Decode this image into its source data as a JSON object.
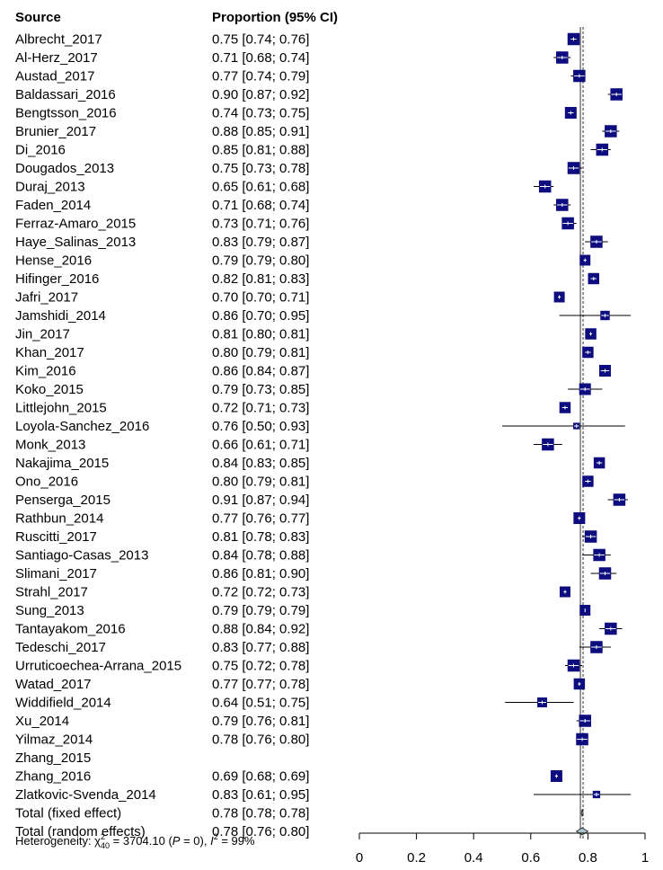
{
  "chart_data": {
    "type": "forest",
    "headers": {
      "source": "Source",
      "estimate": "Proportion (95% CI)"
    },
    "xlim": [
      0,
      1
    ],
    "x_ticks": [
      0,
      0.2,
      0.4,
      0.6,
      0.8,
      1
    ],
    "x_tick_labels": [
      "0",
      "0.2",
      "0.4",
      "0.6",
      "0.8",
      "1"
    ],
    "fixed_line": 0.78,
    "random_line": 0.78,
    "colors": {
      "box": "#0d0d80",
      "diamond": "#a9c4cc",
      "ci": "#000000"
    },
    "studies": [
      {
        "name": "Albrecht_2017",
        "text": "0.75 [0.74; 0.76]",
        "est": 0.75,
        "lo": 0.74,
        "hi": 0.76,
        "w": 2.6
      },
      {
        "name": "Al-Herz_2017",
        "text": "0.71 [0.68; 0.74]",
        "est": 0.71,
        "lo": 0.68,
        "hi": 0.74,
        "w": 2.6
      },
      {
        "name": "Austad_2017",
        "text": "0.77 [0.74; 0.79]",
        "est": 0.77,
        "lo": 0.74,
        "hi": 0.79,
        "w": 2.6
      },
      {
        "name": "Baldassari_2016",
        "text": "0.90 [0.87; 0.92]",
        "est": 0.9,
        "lo": 0.87,
        "hi": 0.92,
        "w": 2.6
      },
      {
        "name": "Bengtsson_2016",
        "text": "0.74 [0.73; 0.75]",
        "est": 0.74,
        "lo": 0.73,
        "hi": 0.75,
        "w": 2.5
      },
      {
        "name": "Brunier_2017",
        "text": "0.88 [0.85; 0.91]",
        "est": 0.88,
        "lo": 0.85,
        "hi": 0.91,
        "w": 2.6
      },
      {
        "name": "Di_2016",
        "text": "0.85 [0.81; 0.88]",
        "est": 0.85,
        "lo": 0.81,
        "hi": 0.88,
        "w": 2.6
      },
      {
        "name": "Dougados_2013",
        "text": "0.75 [0.73; 0.78]",
        "est": 0.75,
        "lo": 0.73,
        "hi": 0.78,
        "w": 2.6
      },
      {
        "name": "Duraj_2013",
        "text": "0.65 [0.61; 0.68]",
        "est": 0.65,
        "lo": 0.61,
        "hi": 0.68,
        "w": 2.6
      },
      {
        "name": "Faden_2014",
        "text": "0.71 [0.68; 0.74]",
        "est": 0.71,
        "lo": 0.68,
        "hi": 0.74,
        "w": 2.6
      },
      {
        "name": "Ferraz-Amaro_2015",
        "text": "0.73 [0.71; 0.76]",
        "est": 0.73,
        "lo": 0.71,
        "hi": 0.76,
        "w": 2.6
      },
      {
        "name": "Haye_Salinas_2013",
        "text": "0.83 [0.79; 0.87]",
        "est": 0.83,
        "lo": 0.79,
        "hi": 0.87,
        "w": 2.6
      },
      {
        "name": "Hense_2016",
        "text": "0.79 [0.79; 0.80]",
        "est": 0.79,
        "lo": 0.79,
        "hi": 0.8,
        "w": 2.3
      },
      {
        "name": "Hifinger_2016",
        "text": "0.82 [0.81; 0.83]",
        "est": 0.82,
        "lo": 0.81,
        "hi": 0.83,
        "w": 2.4
      },
      {
        "name": "Jafri_2017",
        "text": "0.70 [0.70; 0.71]",
        "est": 0.7,
        "lo": 0.7,
        "hi": 0.71,
        "w": 2.3
      },
      {
        "name": "Jamshidi_2014",
        "text": "0.86 [0.70; 0.95]",
        "est": 0.86,
        "lo": 0.7,
        "hi": 0.95,
        "w": 2.0
      },
      {
        "name": "Jin_2017",
        "text": "0.81 [0.80; 0.81]",
        "est": 0.81,
        "lo": 0.8,
        "hi": 0.81,
        "w": 2.4
      },
      {
        "name": "Khan_2017",
        "text": "0.80 [0.79; 0.81]",
        "est": 0.8,
        "lo": 0.79,
        "hi": 0.81,
        "w": 2.4
      },
      {
        "name": "Kim_2016",
        "text": "0.86 [0.84; 0.87]",
        "est": 0.86,
        "lo": 0.84,
        "hi": 0.87,
        "w": 2.5
      },
      {
        "name": "Koko_2015",
        "text": "0.79 [0.73; 0.85]",
        "est": 0.79,
        "lo": 0.73,
        "hi": 0.85,
        "w": 2.5
      },
      {
        "name": "Littlejohn_2015",
        "text": "0.72 [0.71; 0.73]",
        "est": 0.72,
        "lo": 0.71,
        "hi": 0.73,
        "w": 2.4
      },
      {
        "name": "Loyola-Sanchez_2016",
        "text": "0.76 [0.50; 0.93]",
        "est": 0.76,
        "lo": 0.5,
        "hi": 0.93,
        "w": 1.4
      },
      {
        "name": "Monk_2013",
        "text": "0.66 [0.61; 0.71]",
        "est": 0.66,
        "lo": 0.61,
        "hi": 0.71,
        "w": 2.6
      },
      {
        "name": "Nakajima_2015",
        "text": "0.84 [0.83; 0.85]",
        "est": 0.84,
        "lo": 0.83,
        "hi": 0.85,
        "w": 2.4
      },
      {
        "name": "Ono_2016",
        "text": "0.80 [0.79; 0.81]",
        "est": 0.8,
        "lo": 0.79,
        "hi": 0.81,
        "w": 2.4
      },
      {
        "name": "Penserga_2015",
        "text": "0.91 [0.87; 0.94]",
        "est": 0.91,
        "lo": 0.87,
        "hi": 0.94,
        "w": 2.6
      },
      {
        "name": "Rathbun_2014",
        "text": "0.77 [0.76; 0.77]",
        "est": 0.77,
        "lo": 0.76,
        "hi": 0.77,
        "w": 2.5
      },
      {
        "name": "Ruscitti_2017",
        "text": "0.81 [0.78; 0.83]",
        "est": 0.81,
        "lo": 0.78,
        "hi": 0.83,
        "w": 2.6
      },
      {
        "name": "Santiago-Casas_2013",
        "text": "0.84 [0.78; 0.88]",
        "est": 0.84,
        "lo": 0.78,
        "hi": 0.88,
        "w": 2.6
      },
      {
        "name": "Slimani_2017",
        "text": "0.86 [0.81; 0.90]",
        "est": 0.86,
        "lo": 0.81,
        "hi": 0.9,
        "w": 2.6
      },
      {
        "name": "Strahl_2017",
        "text": "0.72 [0.72; 0.73]",
        "est": 0.72,
        "lo": 0.72,
        "hi": 0.73,
        "w": 2.3
      },
      {
        "name": "Sung_2013",
        "text": "0.79 [0.79; 0.79]",
        "est": 0.79,
        "lo": 0.79,
        "hi": 0.79,
        "w": 2.3
      },
      {
        "name": "Tantayakom_2016",
        "text": "0.88 [0.84; 0.92]",
        "est": 0.88,
        "lo": 0.84,
        "hi": 0.92,
        "w": 2.6
      },
      {
        "name": "Tedeschi_2017",
        "text": "0.83 [0.77; 0.88]",
        "est": 0.83,
        "lo": 0.77,
        "hi": 0.88,
        "w": 2.6
      },
      {
        "name": "Urruticoechea-Arrana_2015",
        "text": "0.75 [0.72; 0.78]",
        "est": 0.75,
        "lo": 0.72,
        "hi": 0.78,
        "w": 2.6
      },
      {
        "name": "Watad_2017",
        "text": "0.77 [0.77; 0.78]",
        "est": 0.77,
        "lo": 0.77,
        "hi": 0.78,
        "w": 2.4
      },
      {
        "name": "Widdifield_2014",
        "text": "0.64 [0.51; 0.75]",
        "est": 0.64,
        "lo": 0.51,
        "hi": 0.75,
        "w": 2.1
      },
      {
        "name": "Xu_2014",
        "text": "0.79 [0.76; 0.81]",
        "est": 0.79,
        "lo": 0.76,
        "hi": 0.81,
        "w": 2.6
      },
      {
        "name": "Yilmaz_2014",
        "text": "0.78 [0.76; 0.80]",
        "est": 0.78,
        "lo": 0.76,
        "hi": 0.8,
        "w": 2.6
      },
      {
        "name": "Zhang_2015",
        "text": "",
        "est": null,
        "lo": null,
        "hi": null,
        "w": 0
      },
      {
        "name": "Zhang_2016",
        "text": "0.69 [0.68; 0.69]",
        "est": 0.69,
        "lo": 0.68,
        "hi": 0.69,
        "w": 2.5
      },
      {
        "name": "Zlatkovic-Svenda_2014",
        "text": "0.83 [0.61; 0.95]",
        "est": 0.83,
        "lo": 0.61,
        "hi": 0.95,
        "w": 1.6
      }
    ],
    "totals": [
      {
        "name": "Total (fixed effect)",
        "text": "0.78 [0.78; 0.78]",
        "est": 0.78,
        "lo": 0.78,
        "hi": 0.78
      },
      {
        "name": "Total (random effects)",
        "text": "0.78 [0.76; 0.80]",
        "est": 0.78,
        "lo": 0.76,
        "hi": 0.8
      }
    ],
    "heterogeneity": {
      "prefix": "Heterogeneity: ",
      "chi": "χ",
      "chi_sup": "2",
      "chi_sub": "40",
      "middle": " = 3704.10 (",
      "p_sym": "P",
      "p_rest": " = 0), ",
      "i_sym": "I",
      "i_sup": "2",
      "i_rest": " = 99%"
    }
  }
}
